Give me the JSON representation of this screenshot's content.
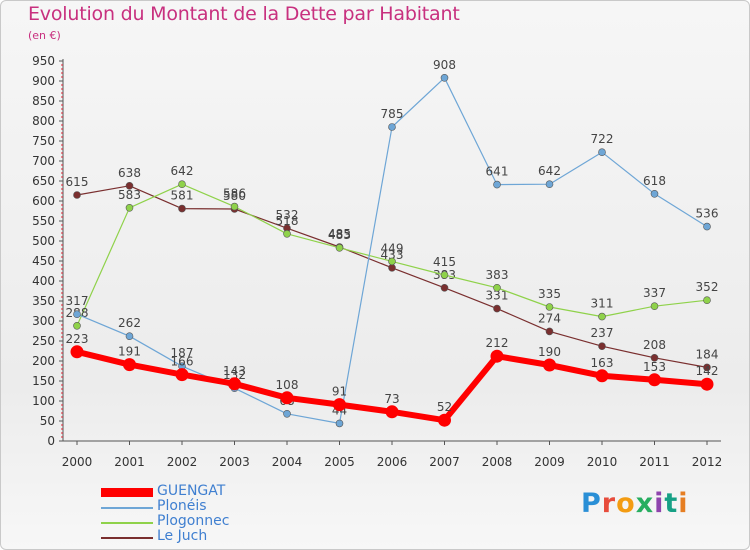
{
  "title": "Evolution du Montant de la Dette par Habitant",
  "unit_label": "(en €)",
  "logo_text": "Proxiti",
  "chart_data": {
    "type": "line",
    "title": "Evolution du Montant de la Dette par Habitant",
    "subtitle": "(en €)",
    "xlabel": "",
    "ylabel": "",
    "x": [
      "2000",
      "2001",
      "2002",
      "2003",
      "2004",
      "2005",
      "2006",
      "2007",
      "2008",
      "2009",
      "2010",
      "2011",
      "2012"
    ],
    "ylim": [
      0,
      950
    ],
    "yticks": [
      0,
      50,
      100,
      150,
      200,
      250,
      300,
      350,
      400,
      450,
      500,
      550,
      600,
      650,
      700,
      750,
      800,
      850,
      900,
      950
    ],
    "grid": false,
    "legend_position": "bottom-left",
    "series": [
      {
        "name": "GUENGAT",
        "color": "#ff0000",
        "width": 6,
        "labels": true,
        "values": [
          223,
          191,
          166,
          143,
          108,
          91,
          73,
          52,
          212,
          190,
          163,
          153,
          142
        ]
      },
      {
        "name": "Plonéis",
        "color": "#6ea6d6",
        "width": 1.2,
        "labels": true,
        "values": [
          317,
          262,
          187,
          132,
          68,
          44,
          785,
          908,
          641,
          642,
          722,
          618,
          536
        ]
      },
      {
        "name": "Plogonnec",
        "color": "#8fd24a",
        "width": 1.2,
        "labels": true,
        "values": [
          288,
          583,
          642,
          586,
          518,
          483,
          449,
          415,
          383,
          335,
          311,
          337,
          352
        ]
      },
      {
        "name": "Le Juch",
        "color": "#7a2f2f",
        "width": 1.2,
        "labels": true,
        "values": [
          615,
          638,
          581,
          580,
          532,
          485,
          433,
          383,
          331,
          274,
          237,
          208,
          184
        ]
      }
    ]
  }
}
